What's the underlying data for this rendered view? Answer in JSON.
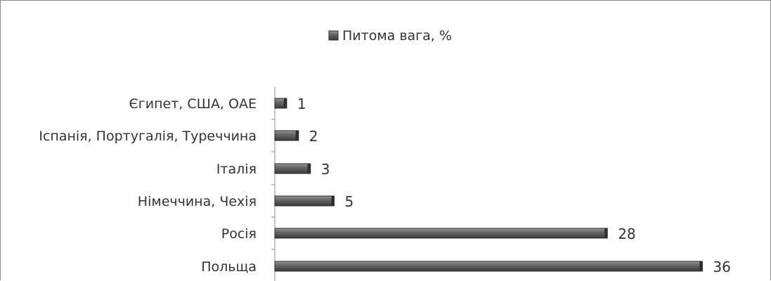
{
  "chart_data": {
    "type": "bar",
    "orientation": "horizontal",
    "categories": [
      "Єгипет, США, ОАЕ",
      "Іспанія, Португалія, Туреччина",
      "Італія",
      "Німеччина, Чехія",
      "Росія",
      "Польща"
    ],
    "series": [
      {
        "name": "Питома вага, %",
        "values": [
          1,
          2,
          3,
          5,
          28,
          36
        ]
      }
    ],
    "legend": "top-center",
    "grid": false,
    "xlim": [
      0,
      40
    ],
    "bar_color": "#5a5a5a"
  }
}
